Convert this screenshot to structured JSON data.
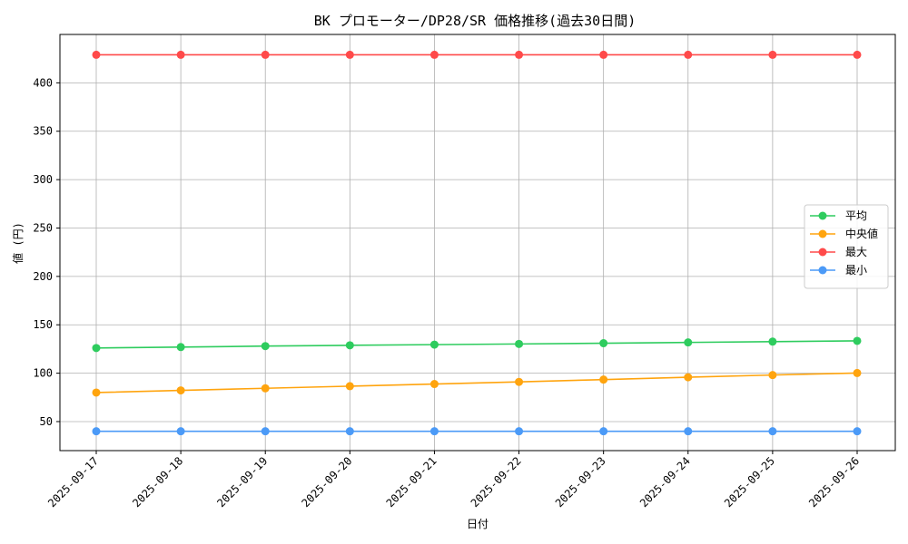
{
  "chart_data": {
    "type": "line",
    "title": "BK プロモーター/DP28/SR 価格推移(過去30日間)",
    "xlabel": "日付",
    "ylabel": "値 (円)",
    "categories": [
      "2025-09-17",
      "2025-09-18",
      "2025-09-19",
      "2025-09-20",
      "2025-09-21",
      "2025-09-22",
      "2025-09-23",
      "2025-09-24",
      "2025-09-25",
      "2025-09-26"
    ],
    "yticks": [
      50,
      100,
      150,
      200,
      250,
      300,
      350,
      400
    ],
    "ylim": [
      20,
      450
    ],
    "grid": true,
    "legend_position": "center-right",
    "series": [
      {
        "name": "平均",
        "color": "#2ecc5e",
        "values": [
          126,
          127,
          128,
          128.8,
          129.5,
          130.2,
          131,
          131.8,
          132.6,
          133.4
        ]
      },
      {
        "name": "中央値",
        "color": "#ffa40e",
        "values": [
          80,
          82.2,
          84.4,
          86.6,
          88.8,
          91,
          93.4,
          95.8,
          98.1,
          100.2
        ]
      },
      {
        "name": "最大",
        "color": "#ff4a4a",
        "values": [
          429,
          429,
          429,
          429,
          429,
          429,
          429,
          429,
          429,
          429
        ]
      },
      {
        "name": "最小",
        "color": "#4b9af7",
        "values": [
          40,
          40,
          40,
          40,
          40,
          40,
          40,
          40,
          40,
          40
        ]
      }
    ]
  }
}
